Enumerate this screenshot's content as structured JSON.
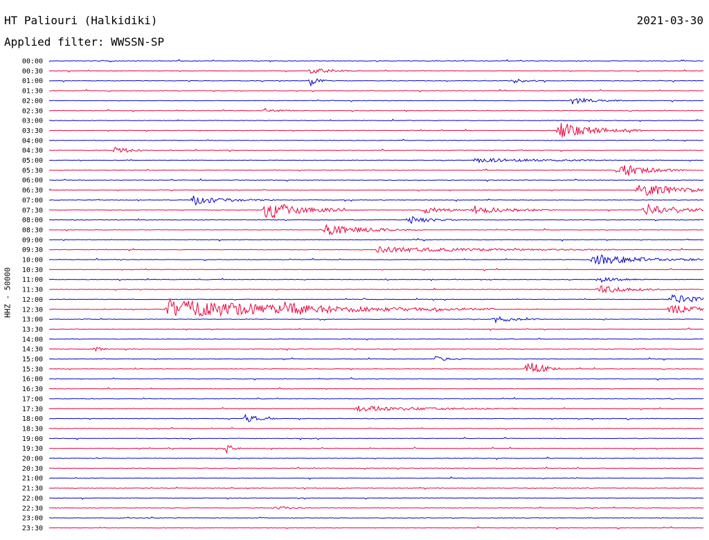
{
  "header": {
    "station": "HT Paliouri (Halkidiki)",
    "date": "2021-03-30",
    "filter_label": "Applied filter: WWSSN-SP"
  },
  "chart_data": {
    "type": "line",
    "title": "HT Paliouri (Halkidiki)",
    "subtitle": "Applied filter: WWSSN-SP",
    "ylabel": "HHZ - 50000",
    "row_labels": [
      "00:00",
      "00:30",
      "01:00",
      "01:30",
      "02:00",
      "02:30",
      "03:00",
      "03:30",
      "04:00",
      "04:30",
      "05:00",
      "05:30",
      "06:00",
      "06:30",
      "07:00",
      "07:30",
      "08:00",
      "08:30",
      "09:00",
      "09:30",
      "10:00",
      "10:30",
      "11:00",
      "11:30",
      "12:00",
      "12:30",
      "13:00",
      "13:30",
      "14:00",
      "14:30",
      "15:00",
      "15:30",
      "16:00",
      "16:30",
      "17:00",
      "17:30",
      "18:00",
      "18:30",
      "19:00",
      "19:30",
      "20:00",
      "20:30",
      "21:00",
      "21:30",
      "22:00",
      "22:30",
      "23:00",
      "23:30"
    ],
    "colors": [
      "#0000cc",
      "#e8003c"
    ],
    "x_unit": "fraction of 30-minute row",
    "xlim": [
      0,
      1
    ],
    "events": [
      {
        "row": "00:30",
        "x": 0.4,
        "amplitude": 4,
        "duration": 0.03
      },
      {
        "row": "01:00",
        "x": 0.4,
        "amplitude": 8,
        "duration": 0.01
      },
      {
        "row": "01:00",
        "x": 0.71,
        "amplitude": 3,
        "duration": 0.02
      },
      {
        "row": "02:00",
        "x": 0.8,
        "amplitude": 5,
        "duration": 0.03
      },
      {
        "row": "02:30",
        "x": 0.33,
        "amplitude": 3,
        "duration": 0.02
      },
      {
        "row": "03:30",
        "x": 0.78,
        "amplitude": 12,
        "duration": 0.05
      },
      {
        "row": "04:30",
        "x": 0.1,
        "amplitude": 6,
        "duration": 0.02
      },
      {
        "row": "05:00",
        "x": 0.65,
        "amplitude": 3,
        "duration": 0.1
      },
      {
        "row": "05:30",
        "x": 0.87,
        "amplitude": 10,
        "duration": 0.04
      },
      {
        "row": "06:30",
        "x": 0.9,
        "amplitude": 10,
        "duration": 0.06
      },
      {
        "row": "07:00",
        "x": 0.22,
        "amplitude": 6,
        "duration": 0.05
      },
      {
        "row": "07:30",
        "x": 0.33,
        "amplitude": 14,
        "duration": 0.05
      },
      {
        "row": "07:30",
        "x": 0.57,
        "amplitude": 5,
        "duration": 0.03
      },
      {
        "row": "07:30",
        "x": 0.65,
        "amplitude": 6,
        "duration": 0.05
      },
      {
        "row": "07:30",
        "x": 0.91,
        "amplitude": 12,
        "duration": 0.04
      },
      {
        "row": "08:00",
        "x": 0.55,
        "amplitude": 6,
        "duration": 0.03
      },
      {
        "row": "08:30",
        "x": 0.42,
        "amplitude": 8,
        "duration": 0.06
      },
      {
        "row": "09:30",
        "x": 0.5,
        "amplitude": 4,
        "duration": 0.15
      },
      {
        "row": "10:00",
        "x": 0.83,
        "amplitude": 8,
        "duration": 0.07
      },
      {
        "row": "11:00",
        "x": 0.84,
        "amplitude": 4,
        "duration": 0.03
      },
      {
        "row": "11:30",
        "x": 0.84,
        "amplitude": 6,
        "duration": 0.04
      },
      {
        "row": "12:00",
        "x": 0.95,
        "amplitude": 7,
        "duration": 0.05
      },
      {
        "row": "12:30",
        "x": 0.18,
        "amplitude": 14,
        "duration": 0.2
      },
      {
        "row": "12:30",
        "x": 0.36,
        "amplitude": 6,
        "duration": 0.03
      },
      {
        "row": "12:30",
        "x": 0.95,
        "amplitude": 8,
        "duration": 0.04
      },
      {
        "row": "13:00",
        "x": 0.68,
        "amplitude": 5,
        "duration": 0.03
      },
      {
        "row": "14:30",
        "x": 0.07,
        "amplitude": 4,
        "duration": 0.01
      },
      {
        "row": "15:00",
        "x": 0.59,
        "amplitude": 4,
        "duration": 0.02
      },
      {
        "row": "15:30",
        "x": 0.73,
        "amplitude": 16,
        "duration": 0.02
      },
      {
        "row": "17:30",
        "x": 0.47,
        "amplitude": 4,
        "duration": 0.1
      },
      {
        "row": "18:00",
        "x": 0.3,
        "amplitude": 6,
        "duration": 0.02
      },
      {
        "row": "19:30",
        "x": 0.27,
        "amplitude": 8,
        "duration": 0.01
      },
      {
        "row": "22:30",
        "x": 0.35,
        "amplitude": 3,
        "duration": 0.02
      }
    ]
  }
}
